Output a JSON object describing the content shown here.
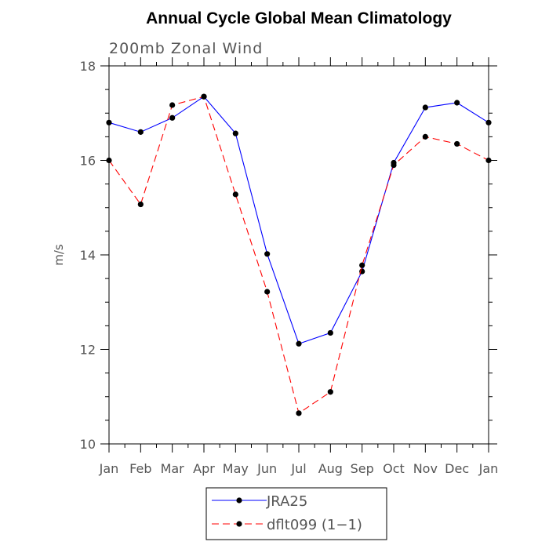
{
  "chart_data": {
    "type": "line",
    "title": "Annual Cycle Global Mean Climatology",
    "subtitle": "200mb Zonal Wind",
    "xlabel": "",
    "ylabel": "m/s",
    "ylim": [
      10,
      18
    ],
    "yticks": [
      10,
      12,
      14,
      16,
      18
    ],
    "categories": [
      "Jan",
      "Feb",
      "Mar",
      "Apr",
      "May",
      "Jun",
      "Jul",
      "Aug",
      "Sep",
      "Oct",
      "Nov",
      "Dec",
      "Jan"
    ],
    "grid": false,
    "legend_position": "bottom",
    "series": [
      {
        "name": "JRA25",
        "color": "#0000ff",
        "line_style": "solid",
        "marker": "filled-circle",
        "values": [
          16.8,
          16.6,
          16.9,
          17.35,
          16.57,
          14.02,
          12.12,
          12.35,
          13.65,
          15.95,
          17.12,
          17.22,
          16.8
        ]
      },
      {
        "name": "dflt099 (1−1)",
        "color": "#ff0000",
        "line_style": "dashed",
        "marker": "filled-circle",
        "values": [
          16.0,
          15.07,
          17.17,
          17.35,
          15.28,
          13.22,
          10.65,
          11.1,
          13.78,
          15.9,
          16.5,
          16.35,
          16.0
        ]
      }
    ]
  }
}
